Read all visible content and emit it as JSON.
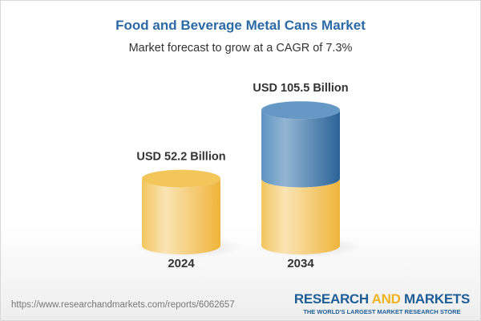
{
  "title": "Food and Beverage Metal Cans Market",
  "subtitle": "Market forecast to grow at a CAGR of 7.3%",
  "chart_data": {
    "type": "bar",
    "style": "3d-cylinder",
    "categories": [
      "2024",
      "2034"
    ],
    "values": [
      52.2,
      105.5
    ],
    "data_labels": [
      "USD 52.2 Billion",
      "USD 105.5 Billion"
    ],
    "colors": {
      "base": "#f3c65a",
      "growth": "#4f87b8"
    }
  },
  "footer": {
    "url": "https://www.researchandmarkets.com/reports/6062657",
    "logo_part1": "RESEARCH ",
    "logo_part2": "AND",
    "logo_part3": " MARKETS",
    "tagline": "THE WORLD'S LARGEST MARKET RESEARCH STORE"
  }
}
